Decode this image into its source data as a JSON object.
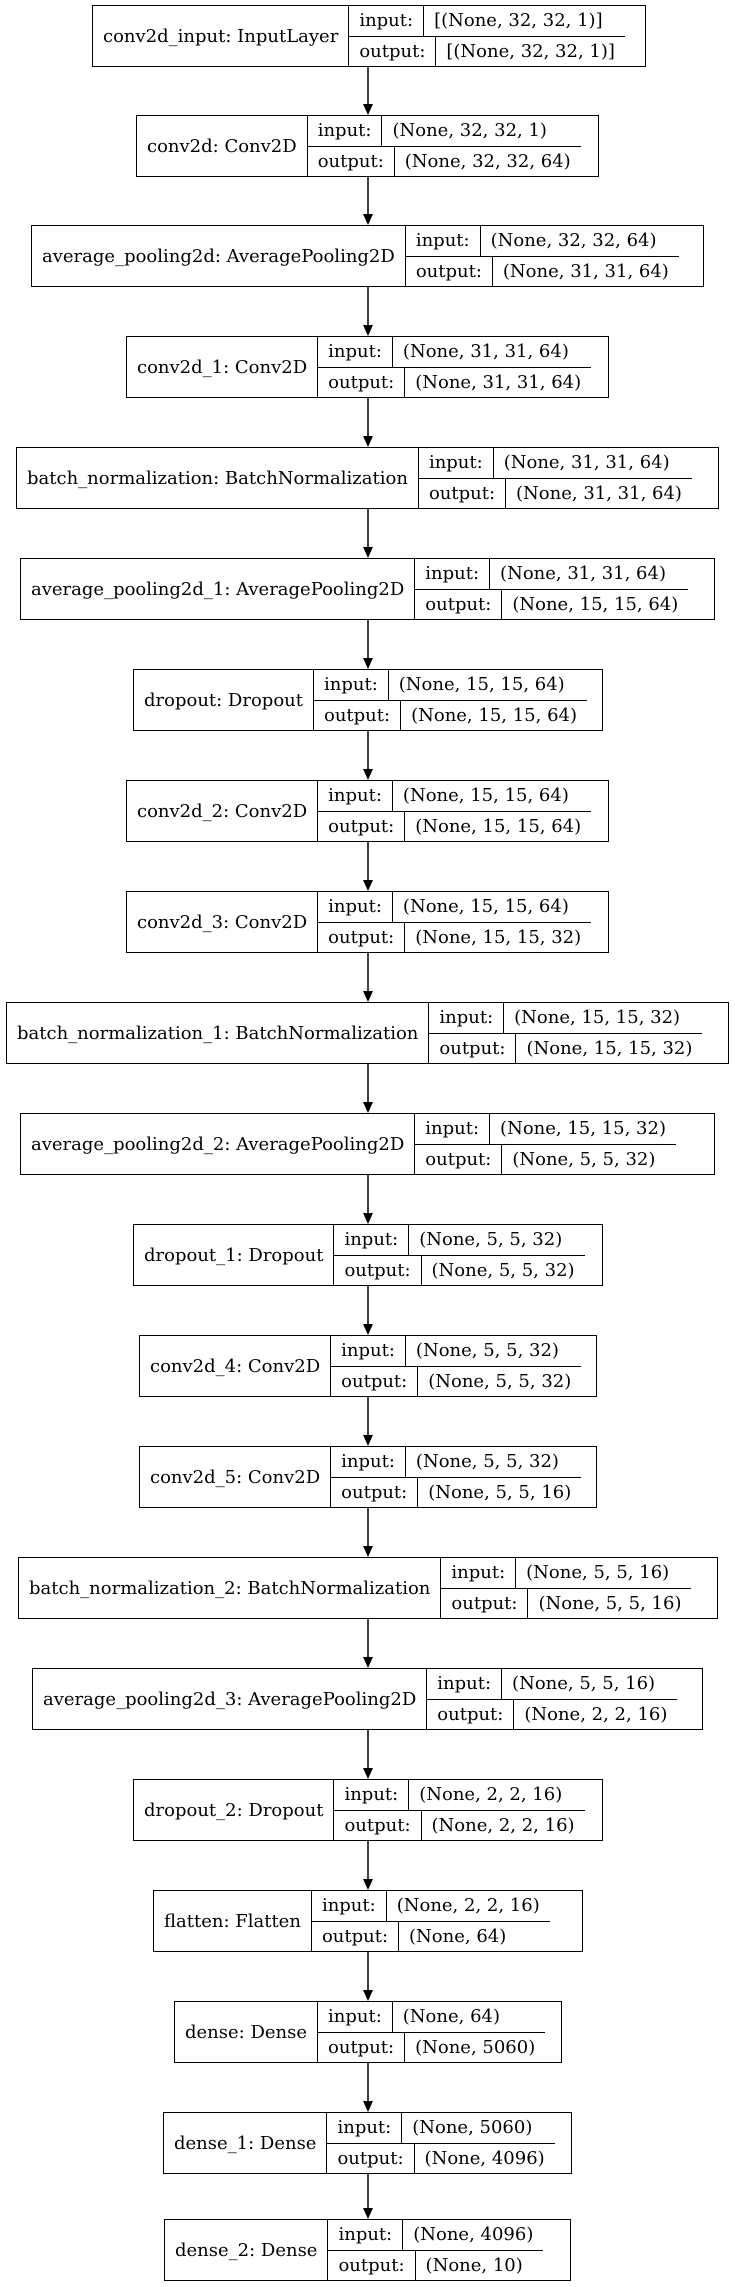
{
  "nodes": [
    {
      "name": "conv2d_input: InputLayer",
      "input_label": "input:",
      "output_label": "output:",
      "input": "[(None, 32, 32, 1)]",
      "output": "[(None, 32, 32, 1)]"
    },
    {
      "name": "conv2d: Conv2D",
      "input_label": "input:",
      "output_label": "output:",
      "input": "(None, 32, 32, 1)",
      "output": "(None, 32, 32, 64)"
    },
    {
      "name": "average_pooling2d: AveragePooling2D",
      "input_label": "input:",
      "output_label": "output:",
      "input": "(None, 32, 32, 64)",
      "output": "(None, 31, 31, 64)"
    },
    {
      "name": "conv2d_1: Conv2D",
      "input_label": "input:",
      "output_label": "output:",
      "input": "(None, 31, 31, 64)",
      "output": "(None, 31, 31, 64)"
    },
    {
      "name": "batch_normalization: BatchNormalization",
      "input_label": "input:",
      "output_label": "output:",
      "input": "(None, 31, 31, 64)",
      "output": "(None, 31, 31, 64)"
    },
    {
      "name": "average_pooling2d_1: AveragePooling2D",
      "input_label": "input:",
      "output_label": "output:",
      "input": "(None, 31, 31, 64)",
      "output": "(None, 15, 15, 64)"
    },
    {
      "name": "dropout: Dropout",
      "input_label": "input:",
      "output_label": "output:",
      "input": "(None, 15, 15, 64)",
      "output": "(None, 15, 15, 64)"
    },
    {
      "name": "conv2d_2: Conv2D",
      "input_label": "input:",
      "output_label": "output:",
      "input": "(None, 15, 15, 64)",
      "output": "(None, 15, 15, 64)"
    },
    {
      "name": "conv2d_3: Conv2D",
      "input_label": "input:",
      "output_label": "output:",
      "input": "(None, 15, 15, 64)",
      "output": "(None, 15, 15, 32)"
    },
    {
      "name": "batch_normalization_1: BatchNormalization",
      "input_label": "input:",
      "output_label": "output:",
      "input": "(None, 15, 15, 32)",
      "output": "(None, 15, 15, 32)"
    },
    {
      "name": "average_pooling2d_2: AveragePooling2D",
      "input_label": "input:",
      "output_label": "output:",
      "input": "(None, 15, 15, 32)",
      "output": "(None, 5, 5, 32)"
    },
    {
      "name": "dropout_1: Dropout",
      "input_label": "input:",
      "output_label": "output:",
      "input": "(None, 5, 5, 32)",
      "output": "(None, 5, 5, 32)"
    },
    {
      "name": "conv2d_4: Conv2D",
      "input_label": "input:",
      "output_label": "output:",
      "input": "(None, 5, 5, 32)",
      "output": "(None, 5, 5, 32)"
    },
    {
      "name": "conv2d_5: Conv2D",
      "input_label": "input:",
      "output_label": "output:",
      "input": "(None, 5, 5, 32)",
      "output": "(None, 5, 5, 16)"
    },
    {
      "name": "batch_normalization_2: BatchNormalization",
      "input_label": "input:",
      "output_label": "output:",
      "input": "(None, 5, 5, 16)",
      "output": "(None, 5, 5, 16)"
    },
    {
      "name": "average_pooling2d_3: AveragePooling2D",
      "input_label": "input:",
      "output_label": "output:",
      "input": "(None, 5, 5, 16)",
      "output": "(None, 2, 2, 16)"
    },
    {
      "name": "dropout_2: Dropout",
      "input_label": "input:",
      "output_label": "output:",
      "input": "(None, 2, 2, 16)",
      "output": "(None, 2, 2, 16)"
    },
    {
      "name": "flatten: Flatten",
      "input_label": "input:",
      "output_label": "output:",
      "input": "(None, 2, 2, 16)",
      "output": "(None, 64)"
    },
    {
      "name": "dense: Dense",
      "input_label": "input:",
      "output_label": "output:",
      "input": "(None, 64)",
      "output": "(None, 5060)"
    },
    {
      "name": "dense_1: Dense",
      "input_label": "input:",
      "output_label": "output:",
      "input": "(None, 5060)",
      "output": "(None, 4096)"
    },
    {
      "name": "dense_2: Dense",
      "input_label": "input:",
      "output_label": "output:",
      "input": "(None, 4096)",
      "output": "(None, 10)"
    }
  ]
}
